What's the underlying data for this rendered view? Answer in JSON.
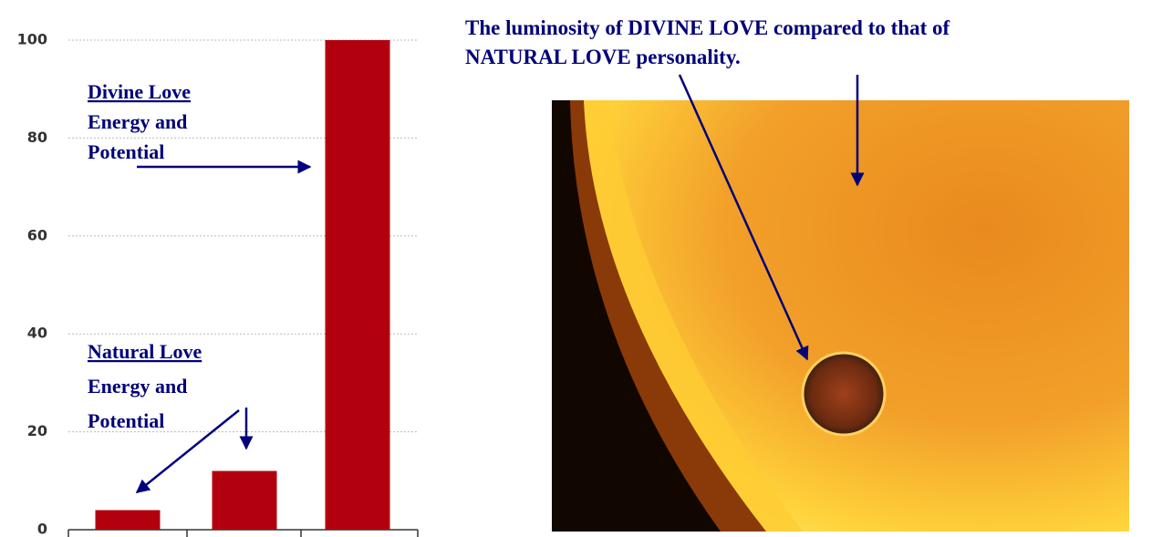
{
  "chart_data": {
    "type": "bar",
    "categories": [
      null,
      null,
      null
    ],
    "values": [
      4,
      12,
      100
    ],
    "color": "#b3000e",
    "ylim": [
      0,
      100
    ],
    "yticks": [
      0,
      20,
      40,
      60,
      80,
      100
    ],
    "grid": true,
    "annotations": [
      "Divine Love",
      "Energy and",
      "Potential",
      "Natural Love",
      "Energy and",
      "Potential"
    ]
  },
  "caption": [
    "The luminosity of DIVINE LOVE compared to that of",
    "NATURAL LOVE personality."
  ]
}
